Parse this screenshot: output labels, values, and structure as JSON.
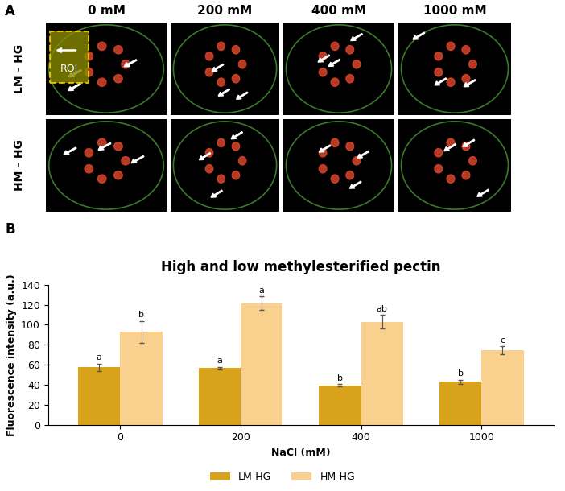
{
  "panel_a": {
    "label": "A",
    "columns": [
      "0 mM",
      "200 mM",
      "400 mM",
      "1000 mM"
    ],
    "rows": [
      "LM - HG",
      "HM - HG"
    ],
    "roi": "ROI"
  },
  "panel_b": {
    "label": "B"
  },
  "chart_data": {
    "type": "bar",
    "title": "High and low methylesterified pectin",
    "x_label": "NaCl (mM)",
    "y_label": "Fluorescence intensity (a.u.)",
    "categories": [
      "0",
      "200",
      "400",
      "1000"
    ],
    "series": [
      {
        "name": "LM-HG",
        "color": "#d9a21b",
        "values": [
          57.5,
          56.5,
          39.5,
          43
        ],
        "error": [
          3.5,
          1.5,
          1,
          2
        ],
        "letters": [
          "a",
          "a",
          "b",
          "b"
        ]
      },
      {
        "name": "HM-HG",
        "color": "#fad08e",
        "values": [
          93,
          121.5,
          103,
          74.5
        ],
        "error": [
          11,
          7,
          7,
          4
        ],
        "letters": [
          "b",
          "a",
          "ab",
          "c"
        ]
      }
    ],
    "ylim": [
      0,
      140
    ],
    "yticks": [
      0,
      20,
      40,
      60,
      80,
      100,
      120,
      140
    ],
    "grid": false,
    "legend": "lower center"
  }
}
